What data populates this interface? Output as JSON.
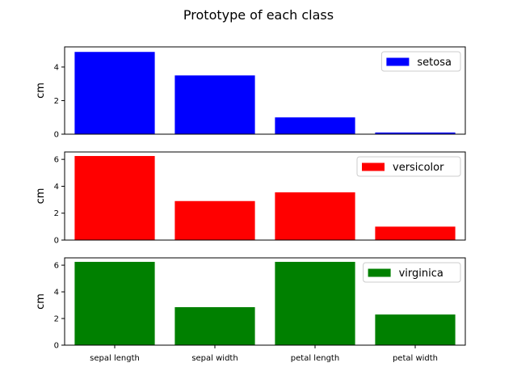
{
  "chart_data": {
    "type": "bar",
    "title": "Prototype of each class",
    "categories": [
      "sepal length",
      "sepal width",
      "petal length",
      "petal width"
    ],
    "ylabel": "cm",
    "panels": [
      {
        "name": "setosa",
        "color": "#0000ff",
        "values": [
          4.9,
          3.5,
          1.0,
          0.1
        ],
        "ylim": [
          0,
          5.2
        ],
        "yticks": [
          0,
          2,
          4
        ],
        "legend_position": "upper-right"
      },
      {
        "name": "versicolor",
        "color": "#ff0000",
        "values": [
          6.25,
          2.9,
          3.55,
          1.0
        ],
        "ylim": [
          0,
          6.55
        ],
        "yticks": [
          0,
          2,
          4,
          6
        ],
        "legend_position": "upper-right"
      },
      {
        "name": "virginica",
        "color": "#008000",
        "values": [
          6.25,
          2.85,
          6.25,
          2.3
        ],
        "ylim": [
          0,
          6.55
        ],
        "yticks": [
          0,
          2,
          4,
          6
        ],
        "legend_position": "upper-right"
      }
    ]
  }
}
